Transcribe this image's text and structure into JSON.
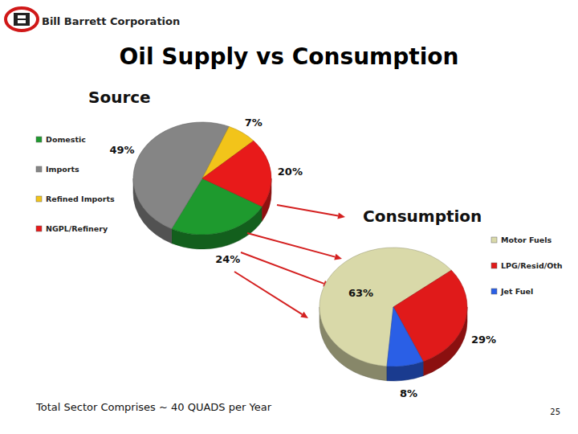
{
  "header": {
    "company": "Bill Barrett Corporation",
    "title": "Oil Supply vs Consumption"
  },
  "chart_data": [
    {
      "type": "pie",
      "title": "Source",
      "categories": [
        "Domestic",
        "Imports",
        "Refined Imports",
        "NGPL/Refinery"
      ],
      "values": [
        24,
        49,
        7,
        20
      ],
      "value_labels": [
        "24%",
        "49%",
        "7%",
        "20%"
      ],
      "colors": [
        "#1e9a2e",
        "#858585",
        "#f2c41a",
        "#e81a1a"
      ],
      "data_labels": true,
      "legend": "left"
    },
    {
      "type": "pie",
      "title": "Consumption",
      "categories": [
        "Motor Fuels",
        "LPG/Resid/Oth",
        "Jet Fuel"
      ],
      "values": [
        63,
        29,
        8
      ],
      "value_labels": [
        "63%",
        "29%",
        "8%"
      ],
      "colors": [
        "#d9d9a9",
        "#e01a1a",
        "#2a5fe6"
      ],
      "data_labels": true,
      "legend": "right"
    }
  ],
  "footer": {
    "note": "Total Sector Comprises ~ 40 QUADS per Year",
    "page": 25
  }
}
